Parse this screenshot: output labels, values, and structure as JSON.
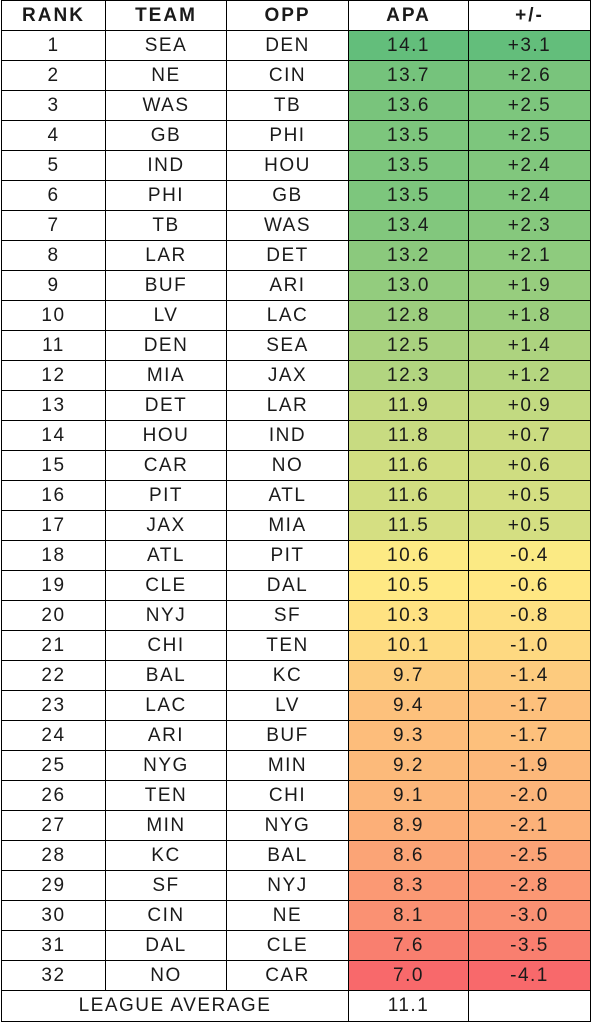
{
  "chart_data": {
    "type": "table",
    "columns": [
      "RANK",
      "TEAM",
      "OPP",
      "APA",
      "+/-"
    ],
    "rows": [
      {
        "rank": "1",
        "team": "SEA",
        "opp": "DEN",
        "apa": 14.1,
        "pm": 3.1
      },
      {
        "rank": "2",
        "team": "NE",
        "opp": "CIN",
        "apa": 13.7,
        "pm": 2.6
      },
      {
        "rank": "3",
        "team": "WAS",
        "opp": "TB",
        "apa": 13.6,
        "pm": 2.5
      },
      {
        "rank": "4",
        "team": "GB",
        "opp": "PHI",
        "apa": 13.5,
        "pm": 2.5
      },
      {
        "rank": "5",
        "team": "IND",
        "opp": "HOU",
        "apa": 13.5,
        "pm": 2.4
      },
      {
        "rank": "6",
        "team": "PHI",
        "opp": "GB",
        "apa": 13.5,
        "pm": 2.4
      },
      {
        "rank": "7",
        "team": "TB",
        "opp": "WAS",
        "apa": 13.4,
        "pm": 2.3
      },
      {
        "rank": "8",
        "team": "LAR",
        "opp": "DET",
        "apa": 13.2,
        "pm": 2.1
      },
      {
        "rank": "9",
        "team": "BUF",
        "opp": "ARI",
        "apa": 13.0,
        "pm": 1.9
      },
      {
        "rank": "10",
        "team": "LV",
        "opp": "LAC",
        "apa": 12.8,
        "pm": 1.8
      },
      {
        "rank": "11",
        "team": "DEN",
        "opp": "SEA",
        "apa": 12.5,
        "pm": 1.4
      },
      {
        "rank": "12",
        "team": "MIA",
        "opp": "JAX",
        "apa": 12.3,
        "pm": 1.2
      },
      {
        "rank": "13",
        "team": "DET",
        "opp": "LAR",
        "apa": 11.9,
        "pm": 0.9
      },
      {
        "rank": "14",
        "team": "HOU",
        "opp": "IND",
        "apa": 11.8,
        "pm": 0.7
      },
      {
        "rank": "15",
        "team": "CAR",
        "opp": "NO",
        "apa": 11.6,
        "pm": 0.6
      },
      {
        "rank": "16",
        "team": "PIT",
        "opp": "ATL",
        "apa": 11.6,
        "pm": 0.5
      },
      {
        "rank": "17",
        "team": "JAX",
        "opp": "MIA",
        "apa": 11.5,
        "pm": 0.5
      },
      {
        "rank": "18",
        "team": "ATL",
        "opp": "PIT",
        "apa": 10.6,
        "pm": -0.4
      },
      {
        "rank": "19",
        "team": "CLE",
        "opp": "DAL",
        "apa": 10.5,
        "pm": -0.6
      },
      {
        "rank": "20",
        "team": "NYJ",
        "opp": "SF",
        "apa": 10.3,
        "pm": -0.8
      },
      {
        "rank": "21",
        "team": "CHI",
        "opp": "TEN",
        "apa": 10.1,
        "pm": -1.0
      },
      {
        "rank": "22",
        "team": "BAL",
        "opp": "KC",
        "apa": 9.7,
        "pm": -1.4
      },
      {
        "rank": "23",
        "team": "LAC",
        "opp": "LV",
        "apa": 9.4,
        "pm": -1.7
      },
      {
        "rank": "24",
        "team": "ARI",
        "opp": "BUF",
        "apa": 9.3,
        "pm": -1.7
      },
      {
        "rank": "25",
        "team": "NYG",
        "opp": "MIN",
        "apa": 9.2,
        "pm": -1.9
      },
      {
        "rank": "26",
        "team": "TEN",
        "opp": "CHI",
        "apa": 9.1,
        "pm": -2.0
      },
      {
        "rank": "27",
        "team": "MIN",
        "opp": "NYG",
        "apa": 8.9,
        "pm": -2.1
      },
      {
        "rank": "28",
        "team": "KC",
        "opp": "BAL",
        "apa": 8.6,
        "pm": -2.5
      },
      {
        "rank": "29",
        "team": "SF",
        "opp": "NYJ",
        "apa": 8.3,
        "pm": -2.8
      },
      {
        "rank": "30",
        "team": "CIN",
        "opp": "NE",
        "apa": 8.1,
        "pm": -3.0
      },
      {
        "rank": "31",
        "team": "DAL",
        "opp": "CLE",
        "apa": 7.6,
        "pm": -3.5
      },
      {
        "rank": "32",
        "team": "NO",
        "opp": "CAR",
        "apa": 7.0,
        "pm": -4.1
      }
    ],
    "footer": {
      "label": "LEAGUE AVERAGE",
      "value": 11.1
    },
    "color_scale": {
      "high": "#63be7b",
      "mid": "#ffeb84",
      "low": "#f8696b"
    }
  }
}
